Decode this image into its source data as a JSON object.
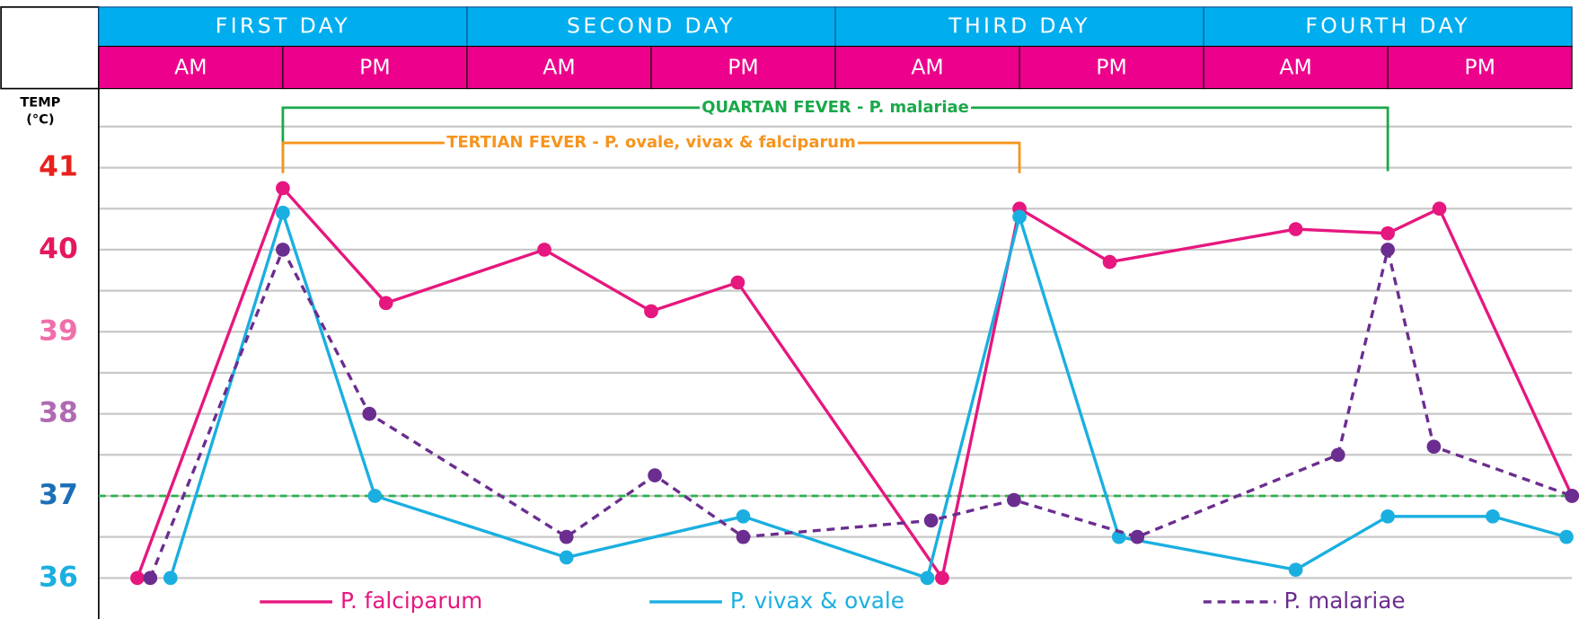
{
  "chart_data": {
    "type": "line",
    "y_label": [
      "TEMP",
      "(°C)"
    ],
    "days": [
      "FIRST DAY",
      "SECOND DAY",
      "THIRD DAY",
      "FOURTH DAY"
    ],
    "categories": [
      "AM",
      "PM",
      "AM",
      "PM",
      "AM",
      "PM",
      "AM",
      "PM"
    ],
    "xlim": [
      0,
      8
    ],
    "ylim": [
      35.5,
      42
    ],
    "yticks": [
      36,
      37,
      38,
      39,
      40,
      41
    ],
    "ytick_colors": [
      "#1aafe0",
      "#1b6fb5",
      "#b06ab3",
      "#f06eaa",
      "#e5175f",
      "#e8211d"
    ],
    "minor_yticks": [
      36,
      36.5,
      37,
      37.5,
      38,
      38.5,
      39,
      39.5,
      40,
      40.5,
      41,
      41.5
    ],
    "grid": true,
    "reference_line": {
      "value": 37,
      "color": "#2bb24c"
    },
    "annotations": [
      {
        "text": "QUARTAN FEVER - P. malariae",
        "x": [
          1,
          7
        ],
        "color": "#1aa84a"
      },
      {
        "text": "TERTIAN FEVER - P. ovale, vivax & falciparum",
        "x": [
          1,
          5
        ],
        "color": "#f7941d"
      }
    ],
    "series": [
      {
        "name": "P. falciparum",
        "color": "#e6177e",
        "dash": "none",
        "x": [
          0.21,
          1.0,
          1.56,
          2.42,
          3.0,
          3.47,
          4.58,
          5.0,
          5.49,
          6.5,
          7.0,
          7.28,
          8.0
        ],
        "values": [
          36,
          40.75,
          39.35,
          40.0,
          39.25,
          39.6,
          36,
          40.5,
          39.85,
          40.25,
          40.2,
          40.5,
          37.0
        ]
      },
      {
        "name": "P. vivax & ovale",
        "color": "#1aafe0",
        "dash": "none",
        "x": [
          0.39,
          1.0,
          1.5,
          2.54,
          3.5,
          4.5,
          5.0,
          5.54,
          6.5,
          7.0,
          7.57,
          7.97
        ],
        "values": [
          36,
          40.45,
          37,
          36.25,
          36.75,
          36,
          40.4,
          36.5,
          36.1,
          36.75,
          36.75,
          36.5
        ]
      },
      {
        "name": "P. malariae",
        "color": "#6b2d8f",
        "dash": "8 6",
        "x": [
          0.28,
          1.0,
          1.47,
          2.54,
          3.02,
          3.5,
          4.52,
          4.97,
          5.64,
          6.73,
          7.0,
          7.25,
          8.0
        ],
        "values": [
          36,
          40,
          38,
          36.5,
          37.25,
          36.5,
          36.7,
          36.95,
          36.5,
          37.5,
          40,
          37.6,
          37.0
        ]
      }
    ]
  }
}
